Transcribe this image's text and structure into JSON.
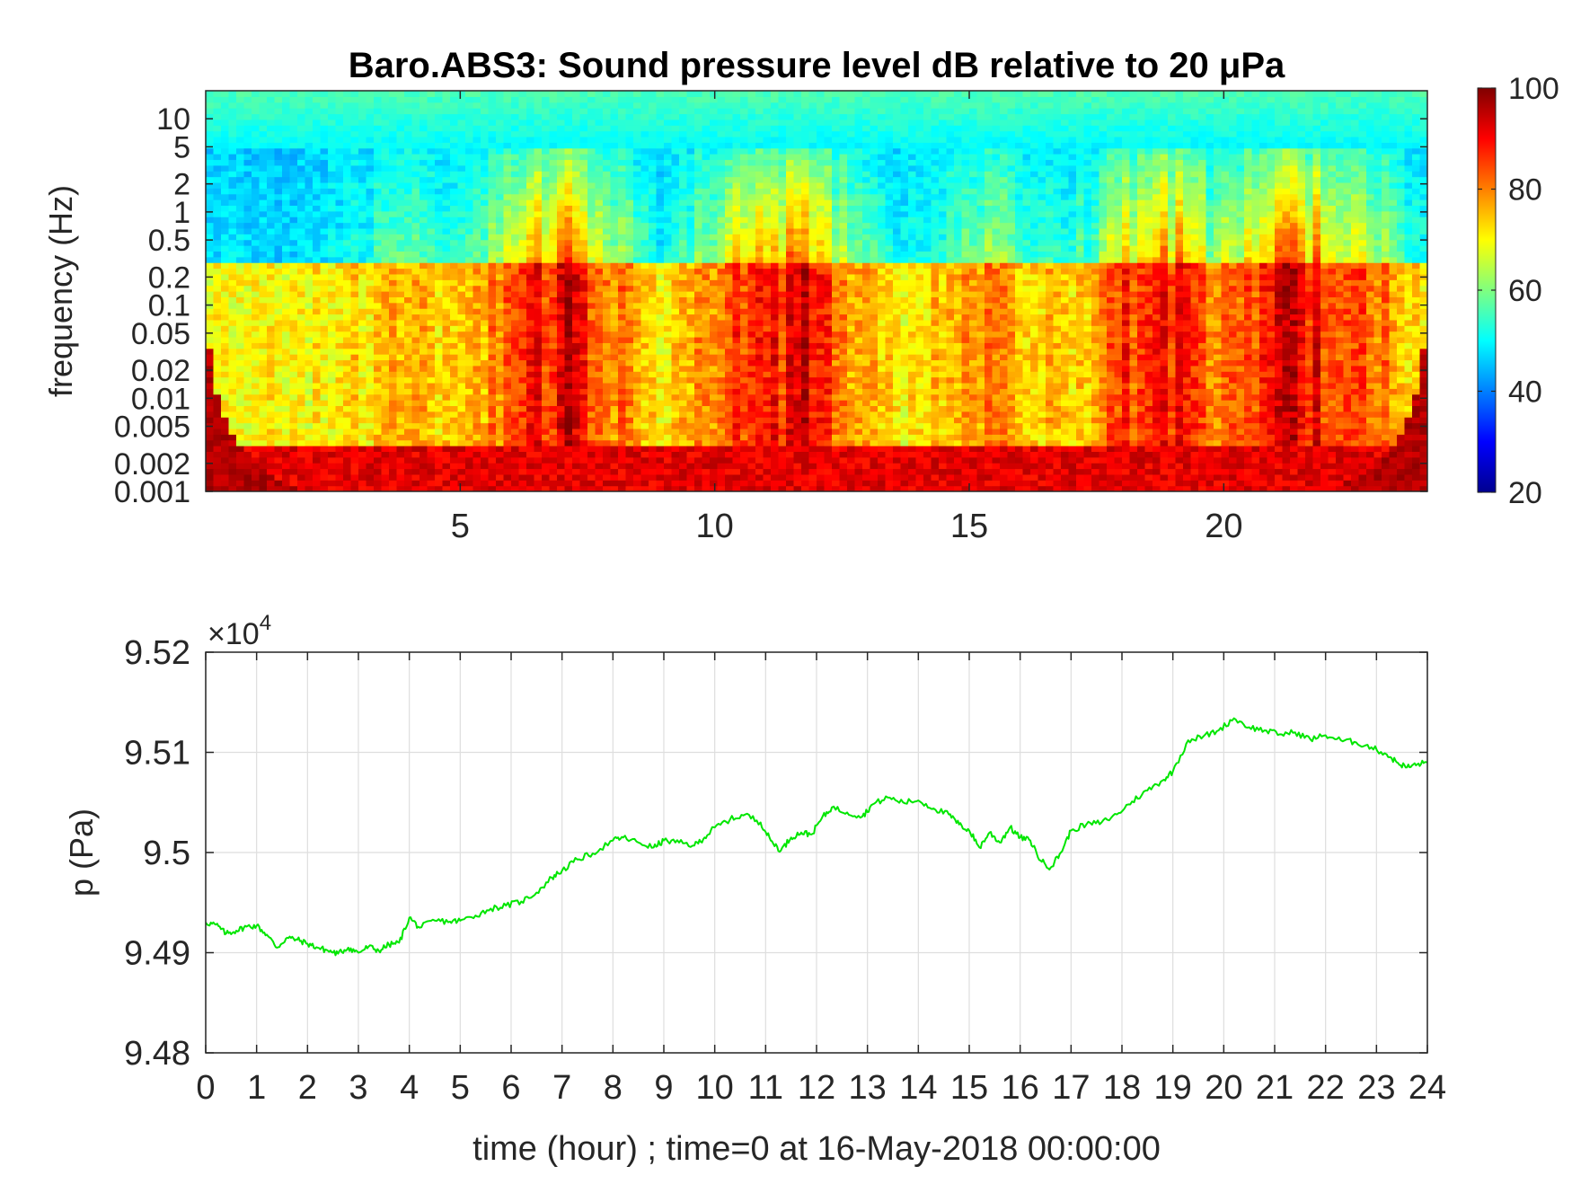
{
  "chart_data": [
    {
      "type": "heatmap",
      "title": "Baro.ABS3: Sound pressure level dB relative to 20 μPa",
      "xlabel": "",
      "ylabel": "frequency (Hz)",
      "x_ticks": [
        "5",
        "10",
        "15",
        "20"
      ],
      "x_tick_values": [
        5,
        10,
        15,
        20
      ],
      "xlim": [
        0,
        24
      ],
      "y_scale": "log",
      "y_ticks": [
        "10",
        "5",
        "2",
        "1",
        "0.5",
        "0.2",
        "0.1",
        "0.05",
        "0.02",
        "0.01",
        "0.005",
        "0.002",
        "0.001"
      ],
      "y_tick_values": [
        10,
        5,
        2,
        1,
        0.5,
        0.2,
        0.1,
        0.05,
        0.02,
        0.01,
        0.005,
        0.002,
        0.001
      ],
      "ylim": [
        0.001,
        20
      ],
      "colormap": "jet",
      "colorbar": {
        "min": 20,
        "max": 100,
        "ticks": [
          "100",
          "80",
          "60",
          "40",
          "20"
        ],
        "tick_values": [
          100,
          80,
          60,
          40,
          20
        ]
      },
      "z_ranges_db": {
        "above_5_hz": [
          45,
          55
        ],
        "0.5_to_2_hz": [
          35,
          75
        ],
        "0.002_to_0.1_hz": [
          70,
          95
        ],
        "below_0.002_hz": [
          88,
          100
        ]
      },
      "high_energy_periods_hours": [
        [
          6,
          8
        ],
        [
          10,
          12.5
        ],
        [
          18,
          19.5
        ],
        [
          20,
          23
        ]
      ]
    },
    {
      "type": "line",
      "title": "",
      "xlabel": "time (hour) ; time=0 at 16-May-2018 00:00:00",
      "ylabel": "p (Pa)",
      "y_multiplier": "×10",
      "y_multiplier_exp": "4",
      "xlim": [
        0,
        24
      ],
      "ylim": [
        9.48,
        9.52
      ],
      "x_ticks": [
        "0",
        "1",
        "2",
        "3",
        "4",
        "5",
        "6",
        "7",
        "8",
        "9",
        "10",
        "11",
        "12",
        "13",
        "14",
        "15",
        "16",
        "17",
        "18",
        "19",
        "20",
        "21",
        "22",
        "23",
        "24"
      ],
      "y_ticks": [
        "9.52",
        "9.51",
        "9.5",
        "9.49",
        "9.48"
      ],
      "y_tick_values": [
        9.52,
        9.51,
        9.5,
        9.49,
        9.48
      ],
      "grid": true,
      "line_color": "#00e600",
      "series": [
        {
          "x": [
            0,
            0.2,
            0.4,
            0.6,
            0.8,
            1.0,
            1.2,
            1.4,
            1.6,
            1.8,
            2.0,
            2.2,
            2.4,
            2.6,
            2.8,
            3.0,
            3.2,
            3.4,
            3.6,
            3.8,
            4.0,
            4.2,
            4.5,
            4.8,
            5.0,
            5.3,
            5.6,
            5.9,
            6.2,
            6.5,
            6.8,
            7.0,
            7.3,
            7.6,
            8.0,
            8.2,
            8.5,
            8.8,
            9.0,
            9.3,
            9.6,
            9.8,
            10.0,
            10.3,
            10.6,
            10.9,
            11.1,
            11.3,
            11.5,
            11.7,
            11.9,
            12.1,
            12.3,
            12.6,
            12.9,
            13.1,
            13.4,
            13.7,
            14.0,
            14.3,
            14.6,
            14.8,
            15.0,
            15.2,
            15.4,
            15.6,
            15.8,
            16.0,
            16.2,
            16.4,
            16.6,
            16.8,
            17.0,
            17.3,
            17.6,
            17.9,
            18.2,
            18.5,
            18.8,
            19.0,
            19.3,
            19.6,
            19.9,
            20.2,
            20.5,
            20.8,
            21.1,
            21.4,
            21.7,
            22.0,
            22.3,
            22.6,
            22.9,
            23.2,
            23.4,
            23.6,
            23.8,
            24.0
          ],
          "y": [
            9.493,
            9.4928,
            9.4919,
            9.4922,
            9.4926,
            9.4927,
            9.4918,
            9.4905,
            9.4915,
            9.4913,
            9.4909,
            9.4905,
            9.4902,
            9.4899,
            9.4905,
            9.49,
            9.4906,
            9.4902,
            9.4908,
            9.491,
            9.4935,
            9.4925,
            9.4932,
            9.4931,
            9.4932,
            9.4937,
            9.4944,
            9.4947,
            9.4951,
            9.496,
            9.4975,
            9.4982,
            9.4993,
            9.4999,
            9.5012,
            9.5015,
            9.501,
            9.5005,
            9.5012,
            9.501,
            9.5007,
            9.5015,
            9.5025,
            9.5033,
            9.5038,
            9.503,
            9.5012,
            9.5002,
            9.5015,
            9.502,
            9.5018,
            9.5034,
            9.5045,
            9.504,
            9.5036,
            9.5048,
            9.5055,
            9.505,
            9.5052,
            9.5044,
            9.5038,
            9.5028,
            9.5022,
            9.5005,
            9.502,
            9.501,
            9.5025,
            9.5015,
            9.5012,
            9.4992,
            9.4985,
            9.5,
            9.5022,
            9.5028,
            9.503,
            9.5038,
            9.5051,
            9.5062,
            9.5072,
            9.5081,
            9.5112,
            9.5116,
            9.5122,
            9.5134,
            9.5125,
            9.5122,
            9.5118,
            9.512,
            9.5113,
            9.5117,
            9.5112,
            9.511,
            9.5105,
            9.5098,
            9.509,
            9.5085,
            9.5088,
            9.509
          ]
        }
      ]
    }
  ]
}
